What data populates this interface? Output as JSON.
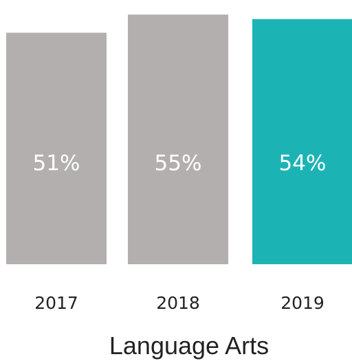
{
  "chart_data": {
    "type": "bar",
    "title": "",
    "xlabel": "Language Arts",
    "ylabel": "",
    "categories": [
      "2017",
      "2018",
      "2019"
    ],
    "values": [
      51,
      55,
      54
    ],
    "value_labels": [
      "51%",
      "55%",
      "54%"
    ],
    "colors": [
      "#b3afaf",
      "#b3afaf",
      "#1cb3b5"
    ],
    "ylim": [
      0,
      57
    ],
    "grid": false,
    "legend": "none"
  }
}
